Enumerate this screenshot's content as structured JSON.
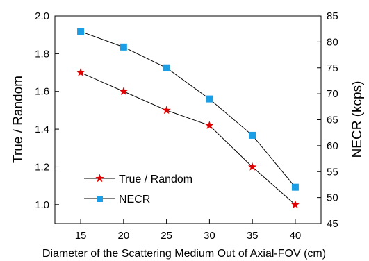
{
  "chart_data": {
    "type": "line",
    "title": "",
    "xlabel": "Diameter of the Scattering Medium Out of Axial-FOV (cm)",
    "ylabel_left": "True / Random",
    "ylabel_right": "NECR (kcps)",
    "x": [
      15,
      20,
      25,
      30,
      35,
      40
    ],
    "xlim": [
      12,
      43
    ],
    "xticks": [
      15,
      20,
      25,
      30,
      35,
      40
    ],
    "ylim_left": [
      0.9,
      2.0
    ],
    "yticks_left": [
      1.0,
      1.2,
      1.4,
      1.6,
      1.8,
      2.0
    ],
    "ylim_right": [
      45,
      85
    ],
    "yticks_right": [
      45,
      50,
      55,
      60,
      65,
      70,
      75,
      80,
      85
    ],
    "series": [
      {
        "name": "True / Random",
        "axis": "left",
        "marker": "star",
        "color": "#e00000",
        "values": [
          1.7,
          1.6,
          1.5,
          1.42,
          1.2,
          1.0
        ]
      },
      {
        "name": "NECR",
        "axis": "right",
        "marker": "square",
        "color": "#1a9ee6",
        "values": [
          82,
          79,
          75,
          69,
          62,
          52
        ]
      }
    ],
    "legend_position": "bottom-left",
    "grid": false
  }
}
